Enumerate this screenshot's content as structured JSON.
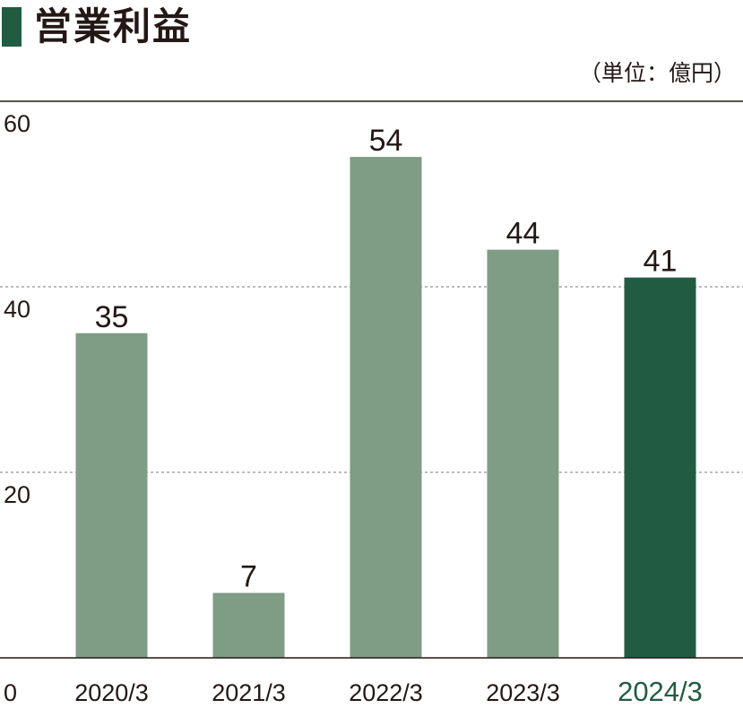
{
  "title": "営業利益",
  "unit": "（単位：億円）",
  "colors": {
    "bar": "#7f9c85",
    "highlight": "#215c42",
    "text": "#231815",
    "axis": "#231815",
    "grid": "#7a7a7a"
  },
  "chart_data": {
    "type": "bar",
    "title": "営業利益",
    "ylabel": "",
    "xlabel": "",
    "unit": "（単位：億円）",
    "categories": [
      "2020/3",
      "2021/3",
      "2022/3",
      "2023/3",
      "2024/3"
    ],
    "values": [
      35,
      7,
      54,
      44,
      41
    ],
    "highlight_index": 4,
    "ylim": [
      0,
      60
    ],
    "yticks": [
      0,
      20,
      40,
      60
    ],
    "grid": true,
    "legend": "none"
  }
}
